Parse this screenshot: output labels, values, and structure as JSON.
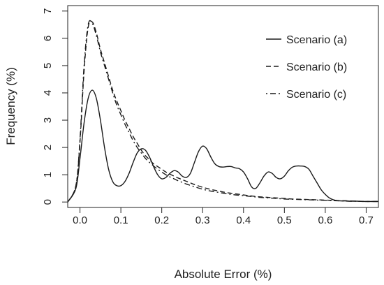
{
  "chart_data": {
    "type": "line",
    "xlabel": "Absolute Error (%)",
    "ylabel": "Frequency (%)",
    "xlim": [
      -0.03,
      0.73
    ],
    "ylim": [
      -0.2,
      7.2
    ],
    "x_ticks": [
      0.0,
      0.1,
      0.2,
      0.3,
      0.4,
      0.5,
      0.6,
      0.7
    ],
    "x_tick_labels": [
      "0.0",
      "0.1",
      "0.2",
      "0.3",
      "0.4",
      "0.5",
      "0.6",
      "0.7"
    ],
    "y_ticks": [
      0,
      1,
      2,
      3,
      4,
      5,
      6,
      7
    ],
    "y_tick_labels": [
      "0",
      "1",
      "2",
      "3",
      "4",
      "5",
      "6",
      "7"
    ],
    "grid": false,
    "legend_position": "top-right",
    "line_color": "#1a1a1a",
    "series": [
      {
        "name": "Scenario (a)",
        "dash": "solid",
        "x": [
          -0.03,
          -0.01,
          0.0,
          0.01,
          0.02,
          0.03,
          0.04,
          0.05,
          0.06,
          0.07,
          0.08,
          0.09,
          0.1,
          0.11,
          0.12,
          0.13,
          0.14,
          0.15,
          0.16,
          0.17,
          0.18,
          0.19,
          0.2,
          0.21,
          0.22,
          0.23,
          0.24,
          0.25,
          0.26,
          0.27,
          0.28,
          0.29,
          0.3,
          0.31,
          0.32,
          0.33,
          0.34,
          0.35,
          0.36,
          0.37,
          0.38,
          0.39,
          0.4,
          0.41,
          0.42,
          0.43,
          0.44,
          0.45,
          0.46,
          0.47,
          0.48,
          0.49,
          0.5,
          0.51,
          0.52,
          0.53,
          0.54,
          0.55,
          0.56,
          0.57,
          0.58,
          0.59,
          0.6,
          0.61,
          0.62,
          0.63,
          0.64,
          0.65,
          0.66,
          0.67,
          0.68,
          0.69,
          0.7,
          0.71,
          0.73
        ],
        "y": [
          0.0,
          0.5,
          1.6,
          2.9,
          3.8,
          4.1,
          3.8,
          3.0,
          2.0,
          1.2,
          0.75,
          0.6,
          0.6,
          0.75,
          1.05,
          1.45,
          1.8,
          1.95,
          1.9,
          1.65,
          1.3,
          1.0,
          0.85,
          0.9,
          1.05,
          1.15,
          1.1,
          0.95,
          0.9,
          1.05,
          1.45,
          1.85,
          2.05,
          1.95,
          1.65,
          1.4,
          1.3,
          1.28,
          1.3,
          1.3,
          1.25,
          1.22,
          1.1,
          0.85,
          0.55,
          0.5,
          0.7,
          0.95,
          1.1,
          1.05,
          0.9,
          0.85,
          0.95,
          1.15,
          1.28,
          1.32,
          1.32,
          1.3,
          1.2,
          0.95,
          0.7,
          0.45,
          0.28,
          0.15,
          0.08,
          0.05,
          0.04,
          0.04,
          0.03,
          0.03,
          0.03,
          0.02,
          0.02,
          0.02,
          0.02
        ]
      },
      {
        "name": "Scenario (b)",
        "dash": "dashed",
        "x": [
          -0.03,
          -0.01,
          0.0,
          0.01,
          0.02,
          0.03,
          0.04,
          0.05,
          0.06,
          0.07,
          0.08,
          0.09,
          0.1,
          0.11,
          0.12,
          0.13,
          0.14,
          0.15,
          0.16,
          0.17,
          0.18,
          0.19,
          0.2,
          0.21,
          0.22,
          0.23,
          0.24,
          0.25,
          0.26,
          0.27,
          0.28,
          0.3,
          0.32,
          0.34,
          0.36,
          0.38,
          0.4,
          0.42,
          0.44,
          0.46,
          0.48,
          0.5,
          0.52,
          0.54,
          0.56,
          0.58,
          0.6,
          0.62,
          0.64,
          0.66,
          0.68,
          0.7,
          0.73
        ],
        "y": [
          0.0,
          0.6,
          2.2,
          4.8,
          6.4,
          6.6,
          6.2,
          5.6,
          5.1,
          4.6,
          4.1,
          3.7,
          3.35,
          3.0,
          2.7,
          2.4,
          2.15,
          1.9,
          1.7,
          1.55,
          1.4,
          1.3,
          1.2,
          1.1,
          1.02,
          0.95,
          0.88,
          0.82,
          0.76,
          0.7,
          0.64,
          0.54,
          0.46,
          0.4,
          0.34,
          0.3,
          0.26,
          0.22,
          0.19,
          0.17,
          0.15,
          0.13,
          0.11,
          0.1,
          0.09,
          0.08,
          0.07,
          0.06,
          0.05,
          0.04,
          0.03,
          0.02,
          0.02
        ]
      },
      {
        "name": "Scenario (c)",
        "dash": "dotdash",
        "x": [
          -0.03,
          -0.01,
          0.0,
          0.01,
          0.02,
          0.03,
          0.04,
          0.05,
          0.06,
          0.07,
          0.08,
          0.09,
          0.1,
          0.11,
          0.12,
          0.13,
          0.14,
          0.15,
          0.16,
          0.17,
          0.18,
          0.19,
          0.2,
          0.21,
          0.22,
          0.23,
          0.24,
          0.25,
          0.26,
          0.27,
          0.28,
          0.3,
          0.32,
          0.34,
          0.36,
          0.38,
          0.4,
          0.42,
          0.44,
          0.46,
          0.48,
          0.5,
          0.52,
          0.54,
          0.56,
          0.58,
          0.6,
          0.62,
          0.64,
          0.66,
          0.68,
          0.7,
          0.73
        ],
        "y": [
          0.0,
          0.6,
          2.3,
          5.0,
          6.5,
          6.55,
          6.1,
          5.5,
          5.0,
          4.5,
          4.0,
          3.55,
          3.2,
          2.85,
          2.55,
          2.25,
          2.0,
          1.8,
          1.6,
          1.45,
          1.32,
          1.2,
          1.1,
          1.0,
          0.92,
          0.85,
          0.78,
          0.72,
          0.66,
          0.61,
          0.56,
          0.47,
          0.4,
          0.35,
          0.3,
          0.26,
          0.23,
          0.2,
          0.17,
          0.15,
          0.13,
          0.11,
          0.1,
          0.09,
          0.08,
          0.07,
          0.06,
          0.05,
          0.04,
          0.03,
          0.03,
          0.02,
          0.02
        ]
      }
    ]
  }
}
